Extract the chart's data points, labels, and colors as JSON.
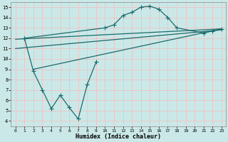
{
  "bg_color": "#cbe8e8",
  "grid_color": "#e8c8c8",
  "line_color": "#1a6b6b",
  "xlabel": "Humidex (Indice chaleur)",
  "xlim": [
    -0.5,
    23.5
  ],
  "ylim": [
    3.5,
    15.5
  ],
  "xticks": [
    0,
    1,
    2,
    3,
    4,
    5,
    6,
    7,
    8,
    9,
    10,
    11,
    12,
    13,
    14,
    15,
    16,
    17,
    18,
    19,
    20,
    21,
    22,
    23
  ],
  "yticks": [
    4,
    5,
    6,
    7,
    8,
    9,
    10,
    11,
    12,
    13,
    14,
    15
  ],
  "curve_line": {
    "x": [
      1,
      10,
      11,
      12,
      13,
      14,
      15,
      16,
      17,
      18,
      21,
      22,
      23
    ],
    "y": [
      12.0,
      13.0,
      13.3,
      14.2,
      14.5,
      15.0,
      15.1,
      14.8,
      14.0,
      13.0,
      12.5,
      12.7,
      12.9
    ]
  },
  "straight_line1": {
    "x": [
      0,
      23
    ],
    "y": [
      11.9,
      12.9
    ]
  },
  "straight_line2": {
    "x": [
      0,
      23
    ],
    "y": [
      11.0,
      12.8
    ]
  },
  "straight_line3": {
    "x": [
      2,
      23
    ],
    "y": [
      9.0,
      12.9
    ]
  },
  "zigzag_line": {
    "x": [
      1,
      2,
      3,
      4,
      5,
      6,
      7,
      8,
      9
    ],
    "y": [
      12.0,
      8.8,
      7.0,
      5.2,
      6.5,
      5.3,
      4.2,
      7.5,
      9.7
    ]
  }
}
